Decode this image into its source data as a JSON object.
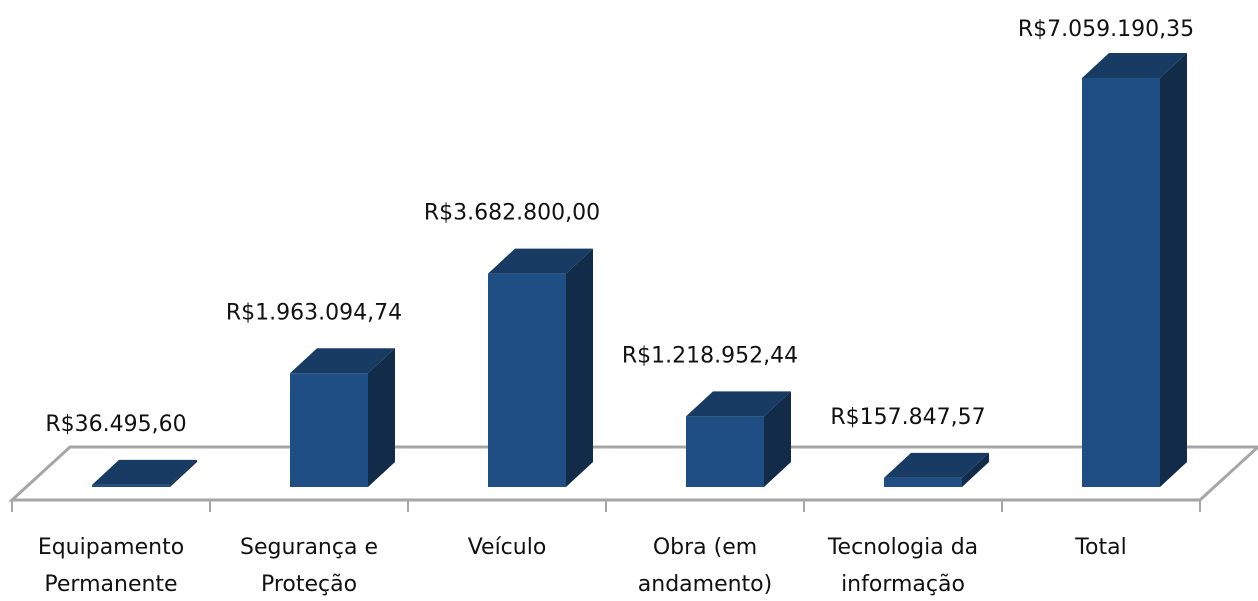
{
  "chart_data": {
    "type": "bar3d",
    "categories": [
      [
        "Equipamento",
        "Permanente"
      ],
      [
        "Segurança e",
        "Proteção"
      ],
      [
        "Veículo"
      ],
      [
        "Obra (em",
        "andamento)"
      ],
      [
        "Tecnologia da",
        "informação"
      ],
      [
        "Total"
      ]
    ],
    "values": [
      36495.6,
      1963094.74,
      3682800.0,
      1218952.44,
      157847.57,
      7059190.35
    ],
    "value_labels": [
      "R$36.495,60",
      "R$1.963.094,74",
      "R$3.682.800,00",
      "R$1.218.952,44",
      "R$157.847,57",
      "R$7.059.190,35"
    ],
    "color": "#1f4e84"
  }
}
